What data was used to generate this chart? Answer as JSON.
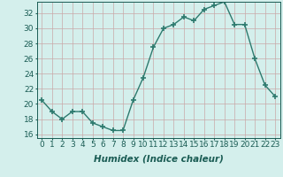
{
  "title": "",
  "xlabel": "Humidex (Indice chaleur)",
  "ylabel": "",
  "x": [
    0,
    1,
    2,
    3,
    4,
    5,
    6,
    7,
    8,
    9,
    10,
    11,
    12,
    13,
    14,
    15,
    16,
    17,
    18,
    19,
    20,
    21,
    22,
    23
  ],
  "y": [
    20.5,
    19.0,
    18.0,
    19.0,
    19.0,
    17.5,
    17.0,
    16.5,
    16.5,
    20.5,
    23.5,
    27.5,
    30.0,
    30.5,
    31.5,
    31.0,
    32.5,
    33.0,
    33.5,
    30.5,
    30.5,
    26.0,
    22.5,
    21.0
  ],
  "line_color": "#2d7a6e",
  "bg_color": "#d4efec",
  "grid_color": "#c0dcd9",
  "tick_label_color": "#1a5c54",
  "ylim": [
    15.5,
    33.5
  ],
  "yticks": [
    16,
    18,
    20,
    22,
    24,
    26,
    28,
    30,
    32
  ],
  "marker": "+",
  "linewidth": 1.0,
  "markersize": 4,
  "markeredgewidth": 1.2,
  "font_size": 6.5,
  "xlabel_fontsize": 7.5
}
